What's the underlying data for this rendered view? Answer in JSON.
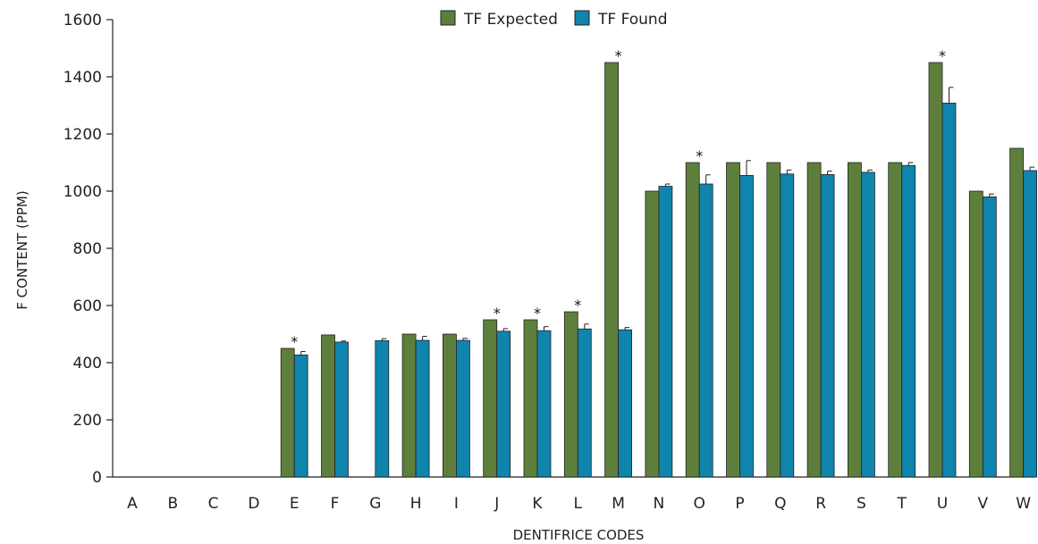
{
  "chart_data": {
    "type": "bar",
    "title": "",
    "xlabel": "DENTIFRICE CODES",
    "ylabel": "F CONTENT (PPM)",
    "ylim": [
      0,
      1600
    ],
    "yticks": [
      0,
      200,
      400,
      600,
      800,
      1000,
      1200,
      1400,
      1600
    ],
    "grid": false,
    "legend_position": "top-center",
    "categories": [
      "A",
      "B",
      "C",
      "D",
      "E",
      "F",
      "G",
      "H",
      "I",
      "J",
      "K",
      "L",
      "M",
      "N",
      "O",
      "P",
      "Q",
      "R",
      "S",
      "T",
      "U",
      "V",
      "W"
    ],
    "series": [
      {
        "name": "TF Expected",
        "color": "#5e7f3c",
        "values": [
          null,
          null,
          null,
          null,
          450,
          497,
          null,
          500,
          500,
          550,
          550,
          578,
          1450,
          1000,
          1100,
          1100,
          1100,
          1100,
          1100,
          1100,
          1450,
          1000,
          1150
        ]
      },
      {
        "name": "TF Found",
        "color": "#0f84ad",
        "values": [
          null,
          null,
          null,
          null,
          427,
          472,
          477,
          478,
          478,
          510,
          512,
          518,
          515,
          1017,
          1025,
          1055,
          1060,
          1058,
          1066,
          1090,
          1308,
          980,
          1072
        ],
        "errors": [
          null,
          null,
          null,
          null,
          12,
          4,
          7,
          14,
          7,
          9,
          14,
          17,
          8,
          8,
          32,
          52,
          14,
          12,
          8,
          10,
          55,
          10,
          12
        ]
      }
    ],
    "significance_marks": [
      "",
      "",
      "",
      "",
      "*",
      "",
      "",
      "",
      "",
      "*",
      "*",
      "*",
      "*",
      "",
      "*",
      "",
      "",
      "",
      "",
      "",
      "*",
      "",
      ""
    ]
  }
}
